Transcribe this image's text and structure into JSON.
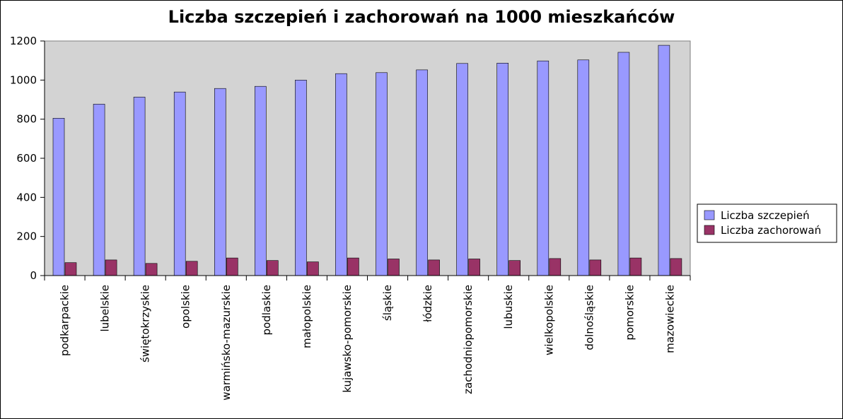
{
  "chart_data": {
    "type": "bar",
    "title": "Liczba szczepień i zachorowań na 1000 mieszkańców",
    "xlabel": "",
    "ylabel": "",
    "ylim": [
      0,
      1200
    ],
    "yticks": [
      "0",
      "200",
      "400",
      "600",
      "800",
      "1000",
      "1200"
    ],
    "grid": false,
    "legend_position": "right",
    "plot_background": "#d3d3d3",
    "categories": [
      "podkarpackie",
      "lubelskie",
      "świętokrzyskie",
      "opolskie",
      "warmińsko-mazurskie",
      "podlaskie",
      "małopolskie",
      "kujawsko-pomorskie",
      "śląskie",
      "łódzkie",
      "zachodniopomorskie",
      "lubuskie",
      "wielkopolskie",
      "dolnośląskie",
      "pomorskie",
      "mazowieckie"
    ],
    "series": [
      {
        "name": "Liczba szczepień",
        "color": "#9999ff",
        "values": [
          805,
          877,
          913,
          939,
          957,
          968,
          1000,
          1033,
          1038,
          1052,
          1085,
          1087,
          1098,
          1103,
          1142,
          1178
        ]
      },
      {
        "name": "Liczba zachorowań",
        "color": "#993366",
        "values": [
          66,
          80,
          62,
          73,
          90,
          77,
          70,
          90,
          85,
          80,
          85,
          77,
          87,
          80,
          90,
          87
        ]
      }
    ]
  }
}
